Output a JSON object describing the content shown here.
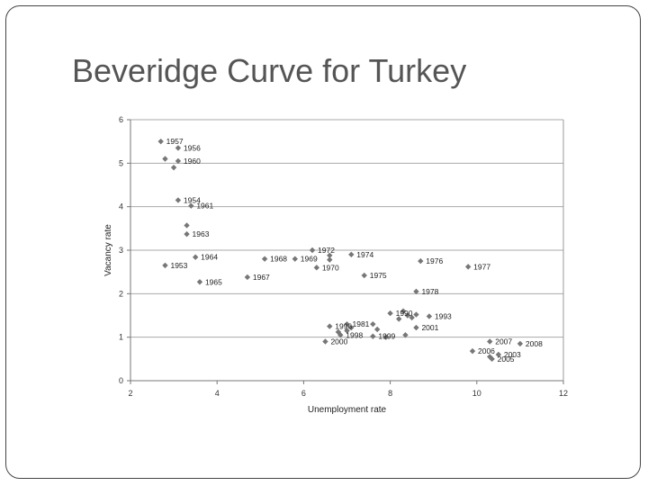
{
  "slide": {
    "title": "Beveridge Curve for Turkey"
  },
  "chart_data": {
    "type": "scatter",
    "title": "",
    "xlabel": "Unemployment rate",
    "ylabel": "Vacancy rate",
    "xlim": [
      2,
      12
    ],
    "ylim": [
      0,
      6
    ],
    "x_ticks": [
      2,
      4,
      6,
      8,
      10,
      12
    ],
    "y_ticks": [
      0,
      1,
      2,
      3,
      4,
      5,
      6
    ],
    "grid": "horizontal",
    "legend": "none",
    "marker_color": "#777777",
    "points": [
      {
        "x": 2.7,
        "y": 5.5,
        "label": "1957"
      },
      {
        "x": 3.1,
        "y": 5.35,
        "label": "1956"
      },
      {
        "x": 2.8,
        "y": 5.1,
        "label": ""
      },
      {
        "x": 3.1,
        "y": 5.05,
        "label": "1960"
      },
      {
        "x": 3.0,
        "y": 4.9,
        "label": ""
      },
      {
        "x": 3.1,
        "y": 4.15,
        "label": "1954"
      },
      {
        "x": 3.4,
        "y": 4.02,
        "label": "1961"
      },
      {
        "x": 3.3,
        "y": 3.57,
        "label": ""
      },
      {
        "x": 3.3,
        "y": 3.37,
        "label": "1963"
      },
      {
        "x": 3.5,
        "y": 2.84,
        "label": "1964"
      },
      {
        "x": 2.8,
        "y": 2.65,
        "label": "1953"
      },
      {
        "x": 3.6,
        "y": 2.27,
        "label": "1965"
      },
      {
        "x": 4.7,
        "y": 2.38,
        "label": "1967"
      },
      {
        "x": 5.1,
        "y": 2.8,
        "label": "1968"
      },
      {
        "x": 5.8,
        "y": 2.8,
        "label": "1969"
      },
      {
        "x": 6.2,
        "y": 3.0,
        "label": "1972"
      },
      {
        "x": 6.3,
        "y": 2.6,
        "label": "1970"
      },
      {
        "x": 6.6,
        "y": 2.88,
        "label": ""
      },
      {
        "x": 6.6,
        "y": 2.78,
        "label": ""
      },
      {
        "x": 7.1,
        "y": 2.9,
        "label": "1974"
      },
      {
        "x": 7.4,
        "y": 2.42,
        "label": "1975"
      },
      {
        "x": 8.7,
        "y": 2.75,
        "label": "1976"
      },
      {
        "x": 9.8,
        "y": 2.62,
        "label": "1977"
      },
      {
        "x": 8.6,
        "y": 2.05,
        "label": "1978"
      },
      {
        "x": 8.0,
        "y": 1.55,
        "label": "1990"
      },
      {
        "x": 8.3,
        "y": 1.6,
        "label": ""
      },
      {
        "x": 8.2,
        "y": 1.42,
        "label": ""
      },
      {
        "x": 8.4,
        "y": 1.5,
        "label": ""
      },
      {
        "x": 8.5,
        "y": 1.45,
        "label": ""
      },
      {
        "x": 8.6,
        "y": 1.52,
        "label": ""
      },
      {
        "x": 8.9,
        "y": 1.48,
        "label": "1993"
      },
      {
        "x": 8.6,
        "y": 1.22,
        "label": "2001"
      },
      {
        "x": 7.0,
        "y": 1.3,
        "label": "1981"
      },
      {
        "x": 6.6,
        "y": 1.25,
        "label": "1996"
      },
      {
        "x": 7.1,
        "y": 1.22,
        "label": ""
      },
      {
        "x": 7.0,
        "y": 1.15,
        "label": ""
      },
      {
        "x": 6.8,
        "y": 1.12,
        "label": ""
      },
      {
        "x": 6.85,
        "y": 1.05,
        "label": "1998"
      },
      {
        "x": 7.6,
        "y": 1.3,
        "label": ""
      },
      {
        "x": 7.7,
        "y": 1.18,
        "label": ""
      },
      {
        "x": 7.6,
        "y": 1.02,
        "label": "1999"
      },
      {
        "x": 7.9,
        "y": 1.0,
        "label": ""
      },
      {
        "x": 8.35,
        "y": 1.05,
        "label": ""
      },
      {
        "x": 6.5,
        "y": 0.9,
        "label": "2000"
      },
      {
        "x": 9.9,
        "y": 0.68,
        "label": "2006"
      },
      {
        "x": 10.3,
        "y": 0.9,
        "label": "2007"
      },
      {
        "x": 10.3,
        "y": 0.55,
        "label": ""
      },
      {
        "x": 10.35,
        "y": 0.5,
        "label": "2005"
      },
      {
        "x": 10.5,
        "y": 0.6,
        "label": "2003"
      },
      {
        "x": 11.0,
        "y": 0.85,
        "label": "2008"
      }
    ]
  }
}
